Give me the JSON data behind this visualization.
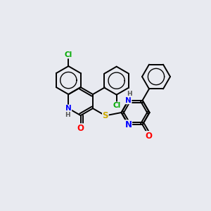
{
  "bg_color": "#e8eaf0",
  "bond_color": "#000000",
  "bond_width": 1.4,
  "atom_colors": {
    "N": "#0000ff",
    "O": "#ff0000",
    "S": "#ccaa00",
    "Cl": "#00aa00"
  },
  "font_size": 7.5,
  "xlim": [
    0,
    10
  ],
  "ylim": [
    0,
    10
  ],
  "figsize": [
    3.0,
    3.0
  ],
  "dpi": 100
}
